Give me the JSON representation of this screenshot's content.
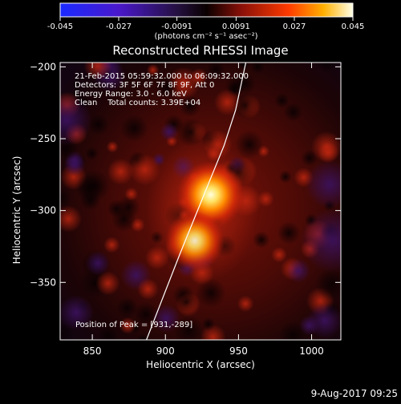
{
  "colorbar": {
    "ticks": [
      "-0.045",
      "-0.027",
      "-0.0091",
      "0.0091",
      "0.027",
      "0.045"
    ],
    "range": [
      -0.045,
      0.045
    ],
    "units": "(photons cm⁻² s⁻¹ asec⁻²)"
  },
  "annotations": {
    "time_range": "21-Feb-2015 05:59:32.000 to 06:09:32.000",
    "detectors": "Detectors: 3F 5F 6F 7F 8F 9F, Att 0",
    "energy": "Energy Range: 3.0 - 6.0 keV",
    "clean": "Clean    Total counts: 3.39E+04",
    "peak": "Position of Peak = [931,-289]"
  },
  "footer": {
    "timestamp": "9-Aug-2017 09:25"
  },
  "chart_data": {
    "type": "heatmap",
    "title": "Reconstructed RHESSI Image",
    "xlabel": "Heliocentric X (arcsec)",
    "ylabel": "Heliocentric Y (arcsec)",
    "xlim": [
      828,
      1020
    ],
    "ylim": [
      -390,
      -197
    ],
    "xticks": [
      850,
      900,
      950,
      1000
    ],
    "yticks": [
      -200,
      -250,
      -300,
      -350
    ],
    "colormap": "hot (blue-purple for negative)",
    "sources": [
      {
        "x": 931,
        "y": -289,
        "relative_intensity": 1.0
      },
      {
        "x": 920,
        "y": -321,
        "relative_intensity": 0.75
      }
    ],
    "peak": [
      931,
      -289
    ],
    "limb_curve": [
      [
        887,
        -390
      ],
      [
        900,
        -356
      ],
      [
        910,
        -330
      ],
      [
        920,
        -305
      ],
      [
        930,
        -280
      ],
      [
        940,
        -255
      ],
      [
        948,
        -230
      ],
      [
        955,
        -197
      ]
    ]
  }
}
